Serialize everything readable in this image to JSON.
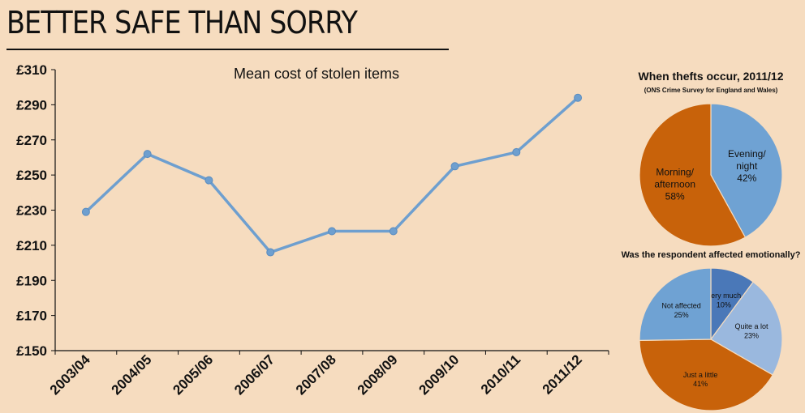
{
  "headline": "BETTER SAFE THAN SORRY",
  "chart_data": [
    {
      "type": "line",
      "title": "Mean cost of stolen items",
      "categories": [
        "2003/04",
        "2004/05",
        "2005/06",
        "2006/07",
        "2007/08",
        "2008/09",
        "2009/10",
        "2010/11",
        "2011/12"
      ],
      "values": [
        229,
        262,
        247,
        206,
        218,
        218,
        255,
        263,
        294
      ],
      "y_tick_labels": [
        "£310",
        "£290",
        "£270",
        "£250",
        "£230",
        "£210",
        "£190",
        "£170",
        "£150"
      ],
      "ylim": [
        150,
        310
      ],
      "color": "#6e9fcf",
      "grid": false
    },
    {
      "type": "pie",
      "title": "When thefts occur, 2011/12",
      "subtitle": "(ONS Crime Survey for England and Wales)",
      "slices": [
        {
          "label_lines": [
            "Evening/",
            "night"
          ],
          "value": 42,
          "value_label": "42%",
          "color": "#6fa2d3"
        },
        {
          "label_lines": [
            "Morning/",
            "afternoon"
          ],
          "value": 58,
          "value_label": "58%",
          "color": "#c8620a"
        }
      ]
    },
    {
      "type": "pie",
      "title": "Was the respondent affected emotionally?",
      "slices": [
        {
          "label_lines": [
            "Very much"
          ],
          "value": 10,
          "value_label": "10%",
          "color": "#4a78b8"
        },
        {
          "label_lines": [
            "Quite a lot"
          ],
          "value": 23,
          "value_label": "23%",
          "color": "#9ab8de"
        },
        {
          "label_lines": [
            "Just a little"
          ],
          "value": 41,
          "value_label": "41%",
          "color": "#c8620a"
        },
        {
          "label_lines": [
            "Not affected"
          ],
          "value": 25,
          "value_label": "25%",
          "color": "#6fa2d3"
        }
      ]
    }
  ]
}
